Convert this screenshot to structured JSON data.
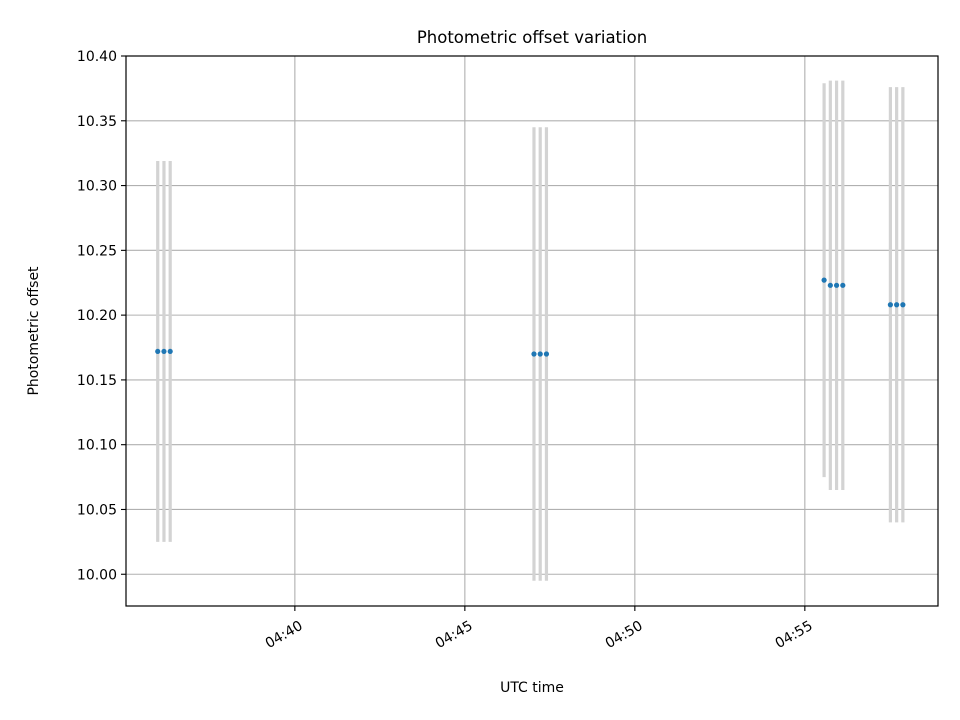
{
  "chart_data": {
    "type": "scatter",
    "title": "Photometric offset variation",
    "xlabel": "UTC time",
    "ylabel": "Photometric offset",
    "xlim": [
      "04:35:02",
      "04:58:55"
    ],
    "ylim": [
      9.9755,
      10.4
    ],
    "x_ticks": [
      {
        "value": "04:40:00",
        "label": "04:40"
      },
      {
        "value": "04:45:00",
        "label": "04:45"
      },
      {
        "value": "04:50:00",
        "label": "04:50"
      },
      {
        "value": "04:55:00",
        "label": "04:55"
      }
    ],
    "y_ticks": [
      {
        "value": 10.0,
        "label": "10.00"
      },
      {
        "value": 10.05,
        "label": "10.05"
      },
      {
        "value": 10.1,
        "label": "10.10"
      },
      {
        "value": 10.15,
        "label": "10.15"
      },
      {
        "value": 10.2,
        "label": "10.20"
      },
      {
        "value": 10.25,
        "label": "10.25"
      },
      {
        "value": 10.3,
        "label": "10.30"
      },
      {
        "value": 10.35,
        "label": "10.35"
      },
      {
        "value": 10.4,
        "label": "10.40"
      }
    ],
    "grid": true,
    "legend": "none",
    "points": [
      {
        "time": "04:35:58",
        "y": 10.172,
        "err": 0.147
      },
      {
        "time": "04:36:09",
        "y": 10.172,
        "err": 0.147
      },
      {
        "time": "04:36:20",
        "y": 10.172,
        "err": 0.147
      },
      {
        "time": "04:47:02",
        "y": 10.17,
        "err": 0.175
      },
      {
        "time": "04:47:13",
        "y": 10.17,
        "err": 0.175
      },
      {
        "time": "04:47:24",
        "y": 10.17,
        "err": 0.175
      },
      {
        "time": "04:55:34",
        "y": 10.227,
        "err": 0.152
      },
      {
        "time": "04:55:45",
        "y": 10.223,
        "err": 0.158
      },
      {
        "time": "04:55:56",
        "y": 10.223,
        "err": 0.158
      },
      {
        "time": "04:56:07",
        "y": 10.223,
        "err": 0.158
      },
      {
        "time": "04:57:31",
        "y": 10.208,
        "err": 0.168
      },
      {
        "time": "04:57:42",
        "y": 10.208,
        "err": 0.168
      },
      {
        "time": "04:57:53",
        "y": 10.208,
        "err": 0.168
      }
    ],
    "colors": {
      "point": "#1f77b4",
      "errorbar": "#d3d3d3",
      "grid": "#b0b0b0",
      "axes": "#000000"
    }
  }
}
